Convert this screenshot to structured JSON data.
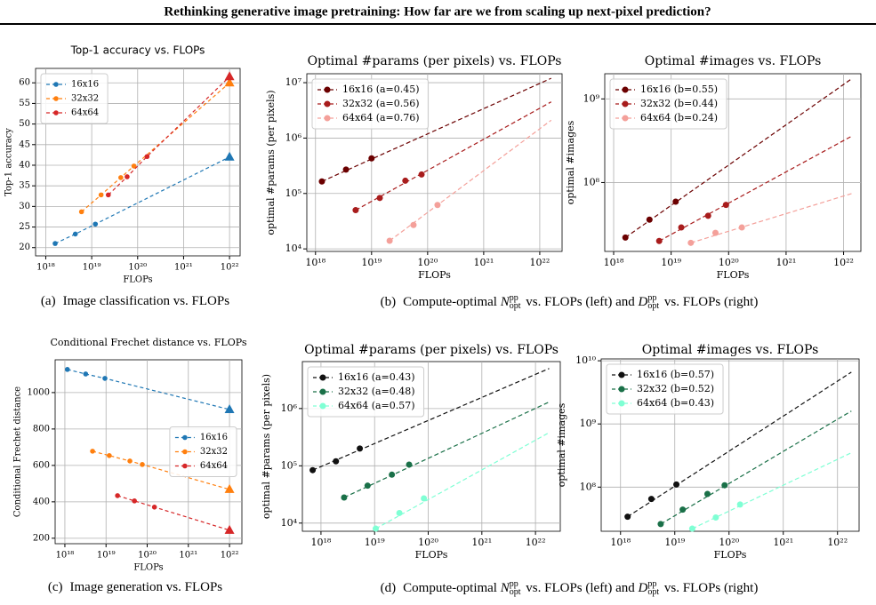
{
  "header": {
    "title": "Rethinking generative image pretraining: How far are we from scaling up next-pixel prediction?"
  },
  "chart_data": [
    {
      "type": "line",
      "title": "Top-1 accuracy vs. FLOPs",
      "xlabel": "FLOPs",
      "ylabel": "Top-1 accuracy",
      "xscale": "log",
      "yscale": "linear",
      "xlim": [
        6e+17,
        1.7e+22
      ],
      "ylim": [
        18,
        63.5
      ],
      "xticks": [
        {
          "value": 1e+18,
          "label": "10¹⁸"
        },
        {
          "value": 1e+19,
          "label": "10¹⁹"
        },
        {
          "value": 1e+20,
          "label": "10²⁰"
        },
        {
          "value": 1e+21,
          "label": "10²¹"
        },
        {
          "value": 1e+22,
          "label": "10²²"
        }
      ],
      "yticks": [
        20,
        25,
        30,
        35,
        40,
        45,
        50,
        55,
        60
      ],
      "grid": true,
      "legend": "upper left",
      "series": [
        {
          "name": "16x16",
          "color": "#1f77b4",
          "x": [
            1.6e+18,
            4.4e+18,
            1.2e+19
          ],
          "values": [
            21,
            23.3,
            25.7
          ],
          "prediction_x": 1e+22,
          "prediction": 42
        },
        {
          "name": "32x32",
          "color": "#ff7f0e",
          "x": [
            6e+18,
            1.6e+19,
            4.3e+19,
            8.3e+19
          ],
          "values": [
            28.7,
            32.8,
            37,
            39.8
          ],
          "prediction_x": 1e+22,
          "prediction": 60
        },
        {
          "name": "64x64",
          "color": "#d62728",
          "x": [
            2.3e+19,
            5.9e+19,
            1.6e+20
          ],
          "values": [
            32.8,
            37.2,
            42.1
          ],
          "prediction_x": 1e+22,
          "prediction": 61.5
        }
      ]
    },
    {
      "type": "line",
      "title": "Optimal #params (per pixels) vs. FLOPs",
      "xlabel": "FLOPs",
      "ylabel": "optimal #params (per pixels)",
      "xscale": "log",
      "yscale": "log",
      "xlim": [
        7e+17,
        2.5e+22
      ],
      "ylim": [
        9000.0,
        14500000.0
      ],
      "xticks": [
        {
          "value": 1e+18,
          "label": "10¹⁸"
        },
        {
          "value": 1e+19,
          "label": "10¹⁹"
        },
        {
          "value": 1e+20,
          "label": "10²⁰"
        },
        {
          "value": 1e+21,
          "label": "10²¹"
        },
        {
          "value": 1e+22,
          "label": "10²²"
        }
      ],
      "yticks": [
        {
          "value": 10000.0,
          "label": "10⁴"
        },
        {
          "value": 100000.0,
          "label": "10⁵"
        },
        {
          "value": 1000000.0,
          "label": "10⁶"
        },
        {
          "value": 10000000.0,
          "label": "10⁷"
        }
      ],
      "grid": true,
      "legend": "upper left",
      "series": [
        {
          "name": "16x16 (a=0.45)",
          "color": "#6b0000",
          "x": [
            1.3e+18,
            3.5e+18,
            1e+19
          ],
          "values": [
            165000.0,
            270000.0,
            430000.0
          ],
          "fit_x": [
            1.3e+18,
            1.6e+22
          ],
          "fit_values": [
            165000.0,
            12000000.0
          ]
        },
        {
          "name": "32x32 (a=0.56)",
          "color": "#a81c1c",
          "x": [
            5.2e+18,
            1.4e+19,
            4e+19,
            7.8e+19
          ],
          "values": [
            50000.0,
            83000.0,
            170000.0,
            220000.0
          ],
          "fit_x": [
            5.2e+18,
            1.6e+22
          ],
          "fit_values": [
            50000.0,
            4500000.0
          ]
        },
        {
          "name": "64x64 (a=0.76)",
          "color": "#f4a09a",
          "x": [
            2.1e+19,
            5.6e+19,
            1.5e+20
          ],
          "values": [
            14000.0,
            27000.0,
            62000.0
          ],
          "fit_x": [
            2.1e+19,
            1.6e+22
          ],
          "fit_values": [
            14000.0,
            2100000.0
          ]
        }
      ]
    },
    {
      "type": "line",
      "title": "Optimal #images vs. FLOPs",
      "xlabel": "FLOPs",
      "ylabel": "optimal #images",
      "xscale": "log",
      "yscale": "log",
      "xlim": [
        7e+17,
        2e+22
      ],
      "ylim": [
        15000000.0,
        2000000000.0
      ],
      "xticks": [
        {
          "value": 1e+18,
          "label": "10¹⁸"
        },
        {
          "value": 1e+19,
          "label": "10¹⁹"
        },
        {
          "value": 1e+20,
          "label": "10²⁰"
        },
        {
          "value": 1e+21,
          "label": "10²¹"
        },
        {
          "value": 1e+22,
          "label": "10²²"
        }
      ],
      "yticks": [
        {
          "value": 100000000.0,
          "label": "10⁸"
        },
        {
          "value": 1000000000.0,
          "label": "10⁹"
        }
      ],
      "grid": true,
      "legend": "upper left",
      "series": [
        {
          "name": "16x16 (b=0.55)",
          "color": "#6b0000",
          "x": [
            1.6e+18,
            4.2e+18,
            1.2e+19
          ],
          "values": [
            22000000.0,
            36000000.0,
            59000000.0
          ],
          "fit_x": [
            1.6e+18,
            1.4e+22
          ],
          "fit_values": [
            22000000.0,
            1750000000.0
          ]
        },
        {
          "name": "32x32 (b=0.44)",
          "color": "#a81c1c",
          "x": [
            6.2e+18,
            1.5e+19,
            4.4e+19,
            9e+19
          ],
          "values": [
            20000000.0,
            29000000.0,
            40000000.0,
            54000000.0
          ],
          "fit_x": [
            6.2e+18,
            1.4e+22
          ],
          "fit_values": [
            20000000.0,
            360000000.0
          ]
        },
        {
          "name": "64x64 (b=0.24)",
          "color": "#f4a09a",
          "x": [
            2.2e+19,
            5.9e+19,
            1.7e+20
          ],
          "values": [
            19000000.0,
            25000000.0,
            29000000.0
          ],
          "fit_x": [
            2.2e+19,
            1.4e+22
          ],
          "fit_values": [
            19000000.0,
            74000000.0
          ]
        }
      ]
    },
    {
      "type": "line",
      "title": "Conditional Frechet distance vs. FLOPs",
      "xlabel": "FLOPs",
      "ylabel": "Conditional Frechet distance",
      "xscale": "log",
      "yscale": "linear",
      "xlim": [
        5.8e+17,
        2e+22
      ],
      "ylim": [
        170,
        1180
      ],
      "xticks": [
        {
          "value": 1e+18,
          "label": "10¹⁸"
        },
        {
          "value": 1e+19,
          "label": "10¹⁹"
        },
        {
          "value": 1e+20,
          "label": "10²⁰"
        },
        {
          "value": 1e+21,
          "label": "10²¹"
        },
        {
          "value": 1e+22,
          "label": "10²²"
        }
      ],
      "yticks": [
        200,
        400,
        600,
        800,
        1000
      ],
      "grid": true,
      "legend": "center right",
      "series": [
        {
          "name": "16x16",
          "color": "#1f77b4",
          "x": [
            1.15e+18,
            3.2e+18,
            9.4e+18
          ],
          "values": [
            1127,
            1102,
            1078
          ],
          "prediction_x": 1e+22,
          "prediction": 907
        },
        {
          "name": "32x32",
          "color": "#ff7f0e",
          "x": [
            4.7e+18,
            1.2e+19,
            3.8e+19,
            7.6e+19
          ],
          "values": [
            678,
            654,
            624,
            605
          ],
          "prediction_x": 1e+22,
          "prediction": 468
        },
        {
          "name": "64x64",
          "color": "#d62728",
          "x": [
            1.9e+19,
            4.9e+19,
            1.5e+20
          ],
          "values": [
            434,
            405,
            371
          ],
          "prediction_x": 1e+22,
          "prediction": 244
        }
      ]
    },
    {
      "type": "line",
      "title": "Optimal #params (per pixels) vs. FLOPs",
      "xlabel": "FLOPs",
      "ylabel": "optimal #params (per pixels)",
      "xscale": "log",
      "yscale": "log",
      "xlim": [
        4.5e+17,
        2.9e+22
      ],
      "ylim": [
        7200.0,
        6600000.0
      ],
      "xticks": [
        {
          "value": 1e+18,
          "label": "10¹⁸"
        },
        {
          "value": 1e+19,
          "label": "10¹⁹"
        },
        {
          "value": 1e+20,
          "label": "10²⁰"
        },
        {
          "value": 1e+21,
          "label": "10²¹"
        },
        {
          "value": 1e+22,
          "label": "10²²"
        }
      ],
      "yticks": [
        {
          "value": 10000.0,
          "label": "10⁴"
        },
        {
          "value": 100000.0,
          "label": "10⁵"
        },
        {
          "value": 1000000.0,
          "label": "10⁶"
        }
      ],
      "grid": true,
      "legend": "upper left",
      "series": [
        {
          "name": "16x16 (a=0.43)",
          "color": "#111111",
          "x": [
            7e+17,
            1.9e+18,
            5.3e+18
          ],
          "values": [
            84000.0,
            120000.0,
            200000.0
          ],
          "fit_x": [
            7e+17,
            1.8e+22
          ],
          "fit_values": [
            84000.0,
            5000000.0
          ]
        },
        {
          "name": "32x32 (a=0.48)",
          "color": "#1a7048",
          "x": [
            2.7e+18,
            7.4e+18,
            2.1e+19,
            4.4e+19
          ],
          "values": [
            28000.0,
            45000.0,
            70000.0,
            105000.0
          ],
          "fit_x": [
            2.7e+18,
            1.8e+22
          ],
          "fit_values": [
            28000.0,
            1300000.0
          ]
        },
        {
          "name": "64x64 (a=0.57)",
          "color": "#7fffd4",
          "x": [
            1.05e+19,
            2.9e+19,
            8.3e+19
          ],
          "values": [
            8000.0,
            15000.0,
            27000.0
          ],
          "fit_x": [
            1.05e+19,
            1.8e+22
          ],
          "fit_values": [
            8000.0,
            380000.0
          ]
        }
      ]
    },
    {
      "type": "line",
      "title": "Optimal #images vs. FLOPs",
      "xlabel": "FLOPs",
      "ylabel": "optimal #images",
      "xscale": "log",
      "yscale": "log",
      "xlim": [
        4.4e+17,
        2.5e+22
      ],
      "ylim": [
        20000000.0,
        10700000000.0
      ],
      "xticks": [
        {
          "value": 1e+18,
          "label": "10¹⁸"
        },
        {
          "value": 1e+19,
          "label": "10¹⁹"
        },
        {
          "value": 1e+20,
          "label": "10²⁰"
        },
        {
          "value": 1e+21,
          "label": "10²¹"
        },
        {
          "value": 1e+22,
          "label": "10²²"
        }
      ],
      "yticks": [
        {
          "value": 100000000.0,
          "label": "10⁸"
        },
        {
          "value": 1000000000.0,
          "label": "10⁹"
        },
        {
          "value": 10000000000.0,
          "label": "10¹⁰"
        }
      ],
      "grid": true,
      "legend": "upper left",
      "series": [
        {
          "name": "16x16 (b=0.57)",
          "color": "#111111",
          "x": [
            1.35e+18,
            3.7e+18,
            1.07e+19
          ],
          "values": [
            34000000.0,
            65000000.0,
            110000000.0
          ],
          "fit_x": [
            1.35e+18,
            1.8e+22
          ],
          "fit_values": [
            34000000.0,
            6600000000.0
          ]
        },
        {
          "name": "32x32 (b=0.52)",
          "color": "#1a7048",
          "x": [
            5.5e+18,
            1.4e+19,
            4e+19,
            8.3e+19
          ],
          "values": [
            26000000.0,
            44000000.0,
            78000000.0,
            107000000.0
          ],
          "fit_x": [
            5.5e+18,
            1.8e+22
          ],
          "fit_values": [
            26000000.0,
            1600000000.0
          ]
        },
        {
          "name": "64x64 (b=0.43)",
          "color": "#7fffd4",
          "x": [
            2.1e+19,
            5.7e+19,
            1.6e+20
          ],
          "values": [
            22000000.0,
            33000000.0,
            53000000.0
          ],
          "fit_x": [
            2.1e+19,
            1.8e+22
          ],
          "fit_values": [
            22000000.0,
            350000000.0
          ]
        }
      ]
    }
  ],
  "captions": [
    {
      "label": "(a)",
      "segments": [
        {
          "text": "Image classification vs. FLOPs"
        }
      ]
    },
    {
      "label": "(b)",
      "segments": [
        {
          "text": "Compute-optimal "
        },
        {
          "symbol": "N",
          "sup": "pp",
          "sub": "opt"
        },
        {
          "text": " vs. FLOPs (left) and "
        },
        {
          "symbol": "D",
          "sup": "pp",
          "sub": "opt"
        },
        {
          "text": " vs. FLOPs (right)"
        }
      ]
    },
    {
      "label": "(c)",
      "segments": [
        {
          "text": "Image generation vs. FLOPs"
        }
      ]
    },
    {
      "label": "(d)",
      "segments": [
        {
          "text": "Compute-optimal "
        },
        {
          "symbol": "N",
          "sup": "pp",
          "sub": "opt"
        },
        {
          "text": " vs. FLOPs (left) and "
        },
        {
          "symbol": "D",
          "sup": "pp",
          "sub": "opt"
        },
        {
          "text": " vs. FLOPs (right)"
        }
      ]
    }
  ]
}
